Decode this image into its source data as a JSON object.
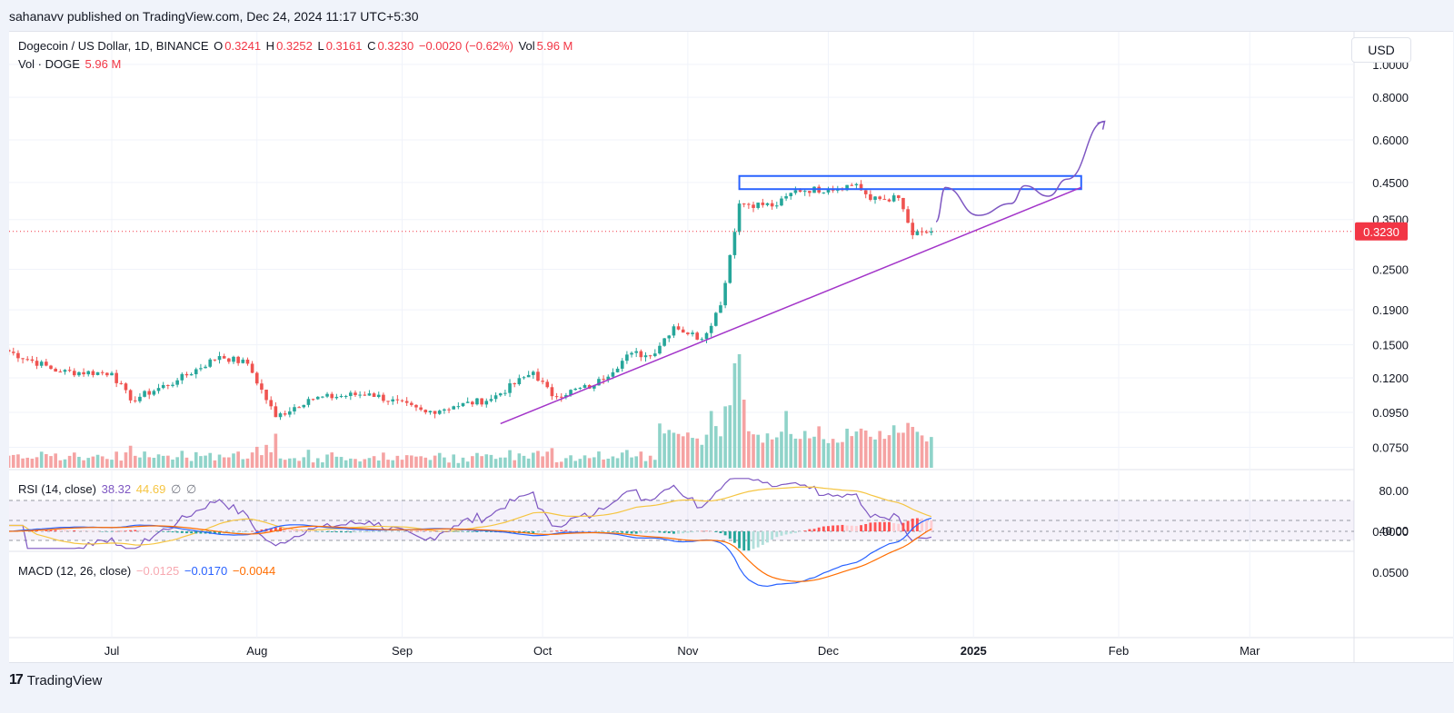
{
  "header": {
    "publisher_line": "sahanavv published on TradingView.com, Dec 24, 2024 11:17 UTC+5:30"
  },
  "legend": {
    "symbol": "Dogecoin / US Dollar, 1D, BINANCE",
    "o_label": "O",
    "o_value": "0.3241",
    "h_label": "H",
    "h_value": "0.3252",
    "l_label": "L",
    "l_value": "0.3161",
    "c_label": "C",
    "c_value": "0.3230",
    "change": "−0.0020 (−0.62%)",
    "vol_label": "Vol",
    "vol_value": "5.96 M",
    "vol_row_label": "Vol · DOGE",
    "vol_row_value": "5.96 M"
  },
  "rsi_legend": {
    "label": "RSI (14, close)",
    "v1": "38.32",
    "v2": "44.69",
    "s1": "∅",
    "s2": "∅"
  },
  "macd_legend": {
    "label": "MACD (12, 26, close)",
    "v1": "−0.0125",
    "v2": "−0.0170",
    "v3": "−0.0044"
  },
  "currency_button": "USD",
  "footer": {
    "brand": "TradingView",
    "logo_glyph": "17"
  },
  "colors": {
    "up": "#26a69a",
    "down": "#ef5350",
    "vol_up": "#8fd3c9",
    "vol_down": "#f5a3a3",
    "trendline": "#a335c9",
    "projection": "#7e57c2",
    "box": "#2962ff",
    "rsi": "#7e57c2",
    "rsi_ma": "#f5c542",
    "macd": "#2962ff",
    "signal": "#ff6d00",
    "last_price": "#f23645"
  },
  "chart_data": [
    {
      "type": "candlestick",
      "scale": "log",
      "y_ticks": [
        "1.0000",
        "0.8000",
        "0.6000",
        "0.4500",
        "0.3500",
        "0.2500",
        "0.1900",
        "0.1500",
        "0.1200",
        "0.0950",
        "0.0750"
      ],
      "y_tick_values": [
        1.0,
        0.8,
        0.6,
        0.45,
        0.35,
        0.25,
        0.19,
        0.15,
        0.12,
        0.095,
        0.075
      ],
      "x_ticks": [
        "Jul",
        "Aug",
        "Sep",
        "Oct",
        "Nov",
        "Dec",
        "2025",
        "Feb",
        "Mar"
      ],
      "x_tick_dates": [
        "2024-07-01",
        "2024-08-01",
        "2024-09-01",
        "2024-10-01",
        "2024-11-01",
        "2024-12-01",
        "2025-01-01",
        "2025-02-01",
        "2025-03-01"
      ],
      "last_price": "0.3230",
      "close_anchors": [
        {
          "date": "2024-06-08",
          "close": 0.145
        },
        {
          "date": "2024-06-20",
          "close": 0.125
        },
        {
          "date": "2024-07-01",
          "close": 0.124
        },
        {
          "date": "2024-07-05",
          "close": 0.103
        },
        {
          "date": "2024-07-15",
          "close": 0.118
        },
        {
          "date": "2024-07-24",
          "close": 0.139
        },
        {
          "date": "2024-07-30",
          "close": 0.132
        },
        {
          "date": "2024-08-05",
          "close": 0.092
        },
        {
          "date": "2024-08-12",
          "close": 0.104
        },
        {
          "date": "2024-08-25",
          "close": 0.108
        },
        {
          "date": "2024-09-06",
          "close": 0.095
        },
        {
          "date": "2024-09-12",
          "close": 0.099
        },
        {
          "date": "2024-09-20",
          "close": 0.104
        },
        {
          "date": "2024-09-29",
          "close": 0.125
        },
        {
          "date": "2024-10-03",
          "close": 0.106
        },
        {
          "date": "2024-10-12",
          "close": 0.114
        },
        {
          "date": "2024-10-20",
          "close": 0.142
        },
        {
          "date": "2024-10-24",
          "close": 0.139
        },
        {
          "date": "2024-10-29",
          "close": 0.17
        },
        {
          "date": "2024-11-04",
          "close": 0.156
        },
        {
          "date": "2024-11-08",
          "close": 0.196
        },
        {
          "date": "2024-11-12",
          "close": 0.39
        },
        {
          "date": "2024-11-20",
          "close": 0.385
        },
        {
          "date": "2024-11-24",
          "close": 0.427
        },
        {
          "date": "2024-12-01",
          "close": 0.43
        },
        {
          "date": "2024-12-07",
          "close": 0.445
        },
        {
          "date": "2024-12-10",
          "close": 0.4
        },
        {
          "date": "2024-12-16",
          "close": 0.405
        },
        {
          "date": "2024-12-19",
          "close": 0.315
        },
        {
          "date": "2024-12-23",
          "close": 0.323
        }
      ],
      "resistance_box": {
        "from": "2024-11-12",
        "to": "2025-01-24",
        "low": 0.43,
        "high": 0.47
      },
      "trendline": {
        "from": {
          "date": "2024-09-22",
          "price": 0.088
        },
        "to": {
          "date": "2025-01-24",
          "price": 0.435
        }
      },
      "projection_path": [
        {
          "date": "2024-12-24",
          "price": 0.345
        },
        {
          "date": "2024-12-26",
          "price": 0.435
        },
        {
          "date": "2025-01-02",
          "price": 0.36
        },
        {
          "date": "2025-01-09",
          "price": 0.39
        },
        {
          "date": "2025-01-12",
          "price": 0.44
        },
        {
          "date": "2025-01-17",
          "price": 0.41
        },
        {
          "date": "2025-01-21",
          "price": 0.46
        },
        {
          "date": "2025-01-29",
          "price": 0.68
        }
      ]
    },
    {
      "type": "bar",
      "name": "Vol · DOGE",
      "last_value": "5.96 M",
      "spikes": [
        {
          "date": "2024-08-05",
          "relative": 0.3
        },
        {
          "date": "2024-11-06",
          "relative": 0.5
        },
        {
          "date": "2024-11-11",
          "relative": 0.92
        },
        {
          "date": "2024-11-12",
          "relative": 1.0
        },
        {
          "date": "2024-11-13",
          "relative": 0.6
        },
        {
          "date": "2024-11-22",
          "relative": 0.5
        },
        {
          "date": "2024-12-19",
          "relative": 0.36
        }
      ]
    },
    {
      "type": "line",
      "name": "RSI (14, close)",
      "y_ticks": [
        "80.00",
        "40.00"
      ],
      "y_tick_values": [
        80,
        40
      ],
      "bands": [
        70,
        50,
        30
      ],
      "last_values": [
        "38.32",
        "44.69"
      ]
    },
    {
      "type": "line",
      "name": "MACD (12, 26, close)",
      "y_ticks": [
        "0.0500",
        "0.0000"
      ],
      "y_tick_values": [
        0.05,
        0.0
      ],
      "last_values": [
        "−0.0125",
        "−0.0170",
        "−0.0044"
      ]
    }
  ]
}
